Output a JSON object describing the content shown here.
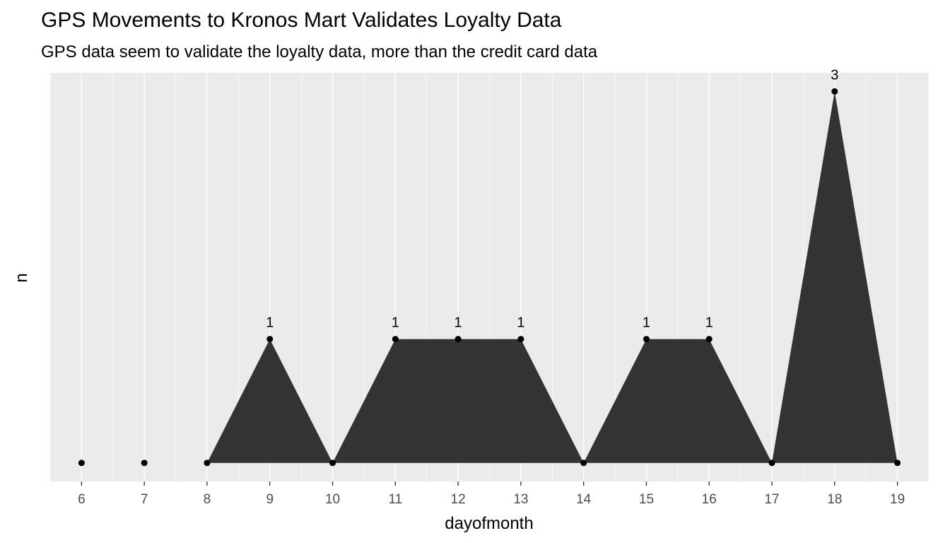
{
  "chart_data": {
    "type": "area",
    "title": "GPS Movements to Kronos Mart Validates Loyalty Data",
    "subtitle": "GPS data seem to validate the loyalty data, more than the credit card data",
    "xlabel": "dayofmonth",
    "ylabel": "n",
    "x": [
      6,
      7,
      8,
      9,
      10,
      11,
      12,
      13,
      14,
      15,
      16,
      17,
      18,
      19
    ],
    "series": [
      {
        "values": [
          0,
          0,
          0,
          1,
          0,
          1,
          1,
          1,
          0,
          1,
          1,
          0,
          3,
          0
        ]
      }
    ],
    "data_labels": [
      {
        "x": 9,
        "label": "1"
      },
      {
        "x": 11,
        "label": "1"
      },
      {
        "x": 12,
        "label": "1"
      },
      {
        "x": 13,
        "label": "1"
      },
      {
        "x": 15,
        "label": "1"
      },
      {
        "x": 16,
        "label": "1"
      },
      {
        "x": 18,
        "label": "3"
      }
    ],
    "xlim": [
      5.5,
      19.5
    ],
    "ylim": [
      -0.15,
      3.15
    ],
    "x_ticks": [
      "6",
      "7",
      "8",
      "9",
      "10",
      "11",
      "12",
      "13",
      "14",
      "15",
      "16",
      "17",
      "18",
      "19"
    ],
    "y_ticks": [],
    "grid": true,
    "colors": {
      "panel": "#ebebeb",
      "grid": "#ffffff",
      "fill": "#333333",
      "point": "#000000"
    }
  }
}
